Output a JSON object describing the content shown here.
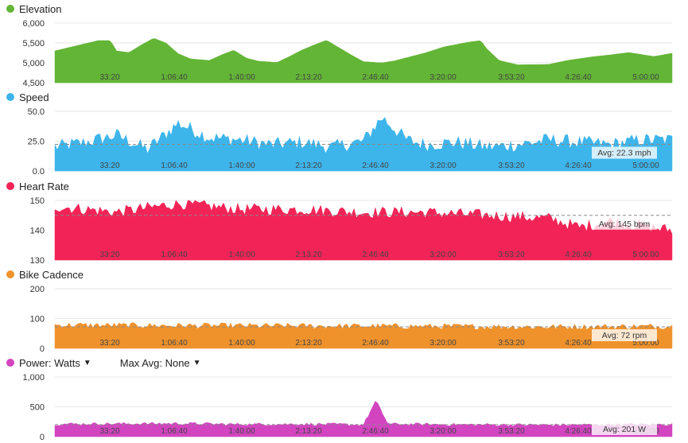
{
  "x_ticks": [
    "33:20",
    "1:06:40",
    "1:40:00",
    "2:13:20",
    "2:46:40",
    "3:20:00",
    "3:53:20",
    "4:26:40",
    "5:00:00"
  ],
  "chart_data": [
    {
      "type": "area",
      "title": "Elevation",
      "color": "#63b536",
      "ylim": [
        4500,
        6000
      ],
      "y_ticks": [
        "6,000",
        "5,500",
        "5,000",
        "4,500"
      ],
      "y_tick_values": [
        6000,
        5500,
        5000,
        4500
      ],
      "x": [
        0,
        0.07,
        0.09,
        0.1,
        0.12,
        0.14,
        0.16,
        0.18,
        0.2,
        0.22,
        0.25,
        0.27,
        0.29,
        0.31,
        0.33,
        0.36,
        0.38,
        0.4,
        0.42,
        0.44,
        0.48,
        0.5,
        0.53,
        0.55,
        0.6,
        0.63,
        0.67,
        0.69,
        0.7,
        0.72,
        0.75,
        0.8,
        0.83,
        0.87,
        0.9,
        0.93,
        0.97,
        1.0
      ],
      "values": [
        5300,
        5560,
        5560,
        5300,
        5260,
        5450,
        5620,
        5500,
        5230,
        5100,
        5060,
        5200,
        5320,
        5120,
        5040,
        5010,
        5160,
        5320,
        5450,
        5570,
        5200,
        5030,
        5000,
        5050,
        5250,
        5400,
        5520,
        5560,
        5350,
        5060,
        4950,
        4960,
        5060,
        5150,
        5200,
        5260,
        5160,
        5240
      ]
    },
    {
      "type": "area",
      "title": "Speed",
      "color": "#3db5eb",
      "ylim": [
        0,
        50
      ],
      "y_ticks": [
        "50.0",
        "25.0",
        "0.0"
      ],
      "y_tick_values": [
        50,
        25,
        0
      ],
      "avg_value": 22.3,
      "avg_label": "Avg: 22.3 mph",
      "x": [
        0,
        0.05,
        0.1,
        0.15,
        0.2,
        0.25,
        0.3,
        0.35,
        0.4,
        0.45,
        0.5,
        0.53,
        0.57,
        0.6,
        0.65,
        0.7,
        0.75,
        0.8,
        0.85,
        0.9,
        0.95,
        1.0
      ],
      "values": [
        20,
        24,
        30,
        18,
        40,
        28,
        26,
        22,
        24,
        20,
        25,
        45,
        26,
        22,
        24,
        20,
        22,
        26,
        24,
        22,
        26,
        26
      ]
    },
    {
      "type": "area",
      "title": "Heart Rate",
      "color": "#f22457",
      "ylim": [
        130,
        150
      ],
      "y_ticks": [
        "150",
        "140",
        "130"
      ],
      "y_tick_values": [
        150,
        140,
        130
      ],
      "avg_value": 145,
      "avg_label": "Avg: 145 bpm",
      "x": [
        0,
        0.1,
        0.2,
        0.3,
        0.4,
        0.5,
        0.6,
        0.7,
        0.8,
        0.85,
        0.9,
        1.0
      ],
      "values": [
        148,
        146,
        149,
        147,
        147,
        146,
        146,
        145,
        144,
        141,
        143,
        140
      ]
    },
    {
      "type": "area",
      "title": "Bike Cadence",
      "color": "#ef922c",
      "ylim": [
        0,
        200
      ],
      "y_ticks": [
        "200",
        "100",
        "0"
      ],
      "y_tick_values": [
        200,
        100,
        0
      ],
      "avg_value": 72,
      "avg_label": "Avg: 72 rpm",
      "x": [
        0,
        0.2,
        0.4,
        0.6,
        0.8,
        1.0
      ],
      "values": [
        78,
        76,
        75,
        74,
        72,
        74
      ]
    },
    {
      "type": "area",
      "title": "Power: Watts",
      "selector_label": "Max Avg: None",
      "color": "#d244c0",
      "ylim": [
        0,
        1000
      ],
      "y_ticks": [
        "1,000",
        "500",
        "0"
      ],
      "y_tick_values": [
        1000,
        500,
        0
      ],
      "avg_value": 201,
      "avg_label": "Avg: 201 W",
      "x": [
        0,
        0.1,
        0.2,
        0.3,
        0.4,
        0.5,
        0.52,
        0.54,
        0.6,
        0.7,
        0.8,
        0.9,
        1.0
      ],
      "values": [
        210,
        215,
        220,
        205,
        210,
        200,
        600,
        210,
        205,
        200,
        195,
        200,
        205
      ]
    }
  ]
}
